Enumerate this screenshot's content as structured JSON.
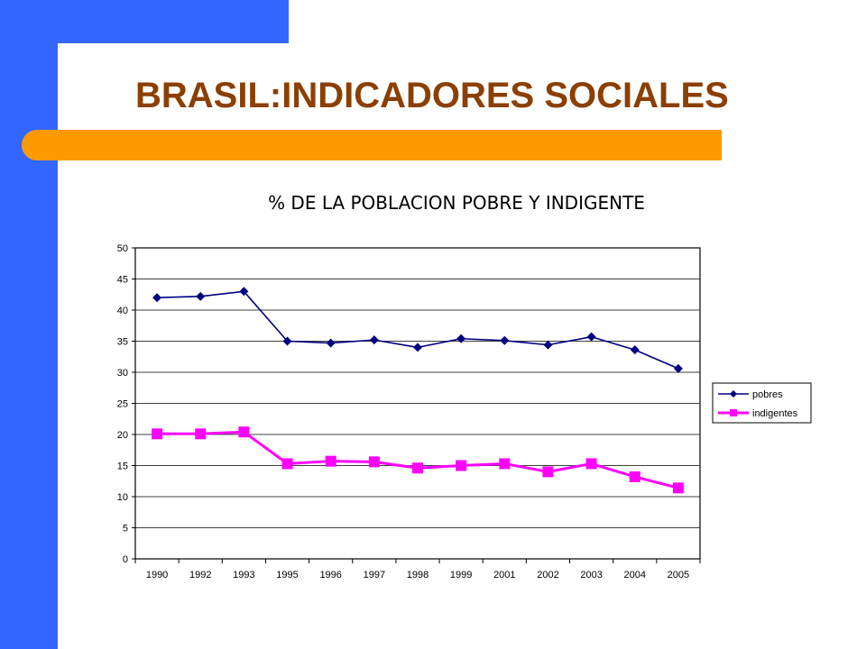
{
  "slide": {
    "title": "BRASIL:INDICADORES SOCIALES"
  },
  "colors": {
    "sidebar": "#3366ff",
    "accent_bar": "#ff9900",
    "title_text": "#8b3f00",
    "series_pobres": "#000080",
    "series_indigentes": "#ff00ff"
  },
  "chart_data": {
    "type": "line",
    "title": "% DE LA POBLACION POBRE Y INDIGENTE",
    "categories": [
      "1990",
      "1992",
      "1993",
      "1995",
      "1996",
      "1997",
      "1998",
      "1999",
      "2001",
      "2002",
      "2003",
      "2004",
      "2005"
    ],
    "series": [
      {
        "name": "pobres",
        "marker": "diamond",
        "color": "#000080",
        "values": [
          42.0,
          42.2,
          43.0,
          35.0,
          34.7,
          35.2,
          34.0,
          35.4,
          35.1,
          34.4,
          35.7,
          33.6,
          30.6
        ]
      },
      {
        "name": "indigentes",
        "marker": "square",
        "color": "#ff00ff",
        "values": [
          20.1,
          20.1,
          20.4,
          15.3,
          15.7,
          15.6,
          14.6,
          15.0,
          15.3,
          14.0,
          15.3,
          13.2,
          11.4
        ]
      }
    ],
    "yticks": [
      "0",
      "5",
      "10",
      "15",
      "20",
      "25",
      "30",
      "35",
      "40",
      "45",
      "50"
    ],
    "ylim": [
      0,
      50
    ],
    "grid": true,
    "legend_position": "right"
  }
}
